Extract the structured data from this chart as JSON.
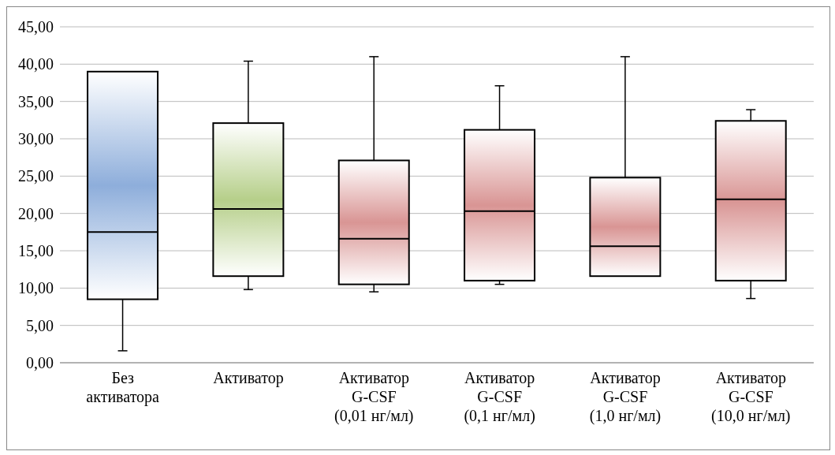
{
  "chart_data": {
    "type": "box",
    "categories": [
      "Без\nактиватора",
      "Активатор",
      "Активатор\nG-CSF\n(0,01 нг/мл)",
      "Активатор\nG-CSF\n(0,1 нг/мл)",
      "Активатор\nG-CSF\n(1,0 нг/мл)",
      "Активатор\nG-CSF\n(10,0 нг/мл)"
    ],
    "boxes": [
      {
        "low": 1.6,
        "q1": 8.5,
        "median": 17.5,
        "q3": 39.0,
        "high": 39.0
      },
      {
        "low": 9.8,
        "q1": 11.6,
        "median": 20.6,
        "q3": 32.1,
        "high": 40.4
      },
      {
        "low": 9.5,
        "q1": 10.5,
        "median": 16.6,
        "q3": 27.1,
        "high": 41.0
      },
      {
        "low": 10.5,
        "q1": 11.0,
        "median": 20.3,
        "q3": 31.2,
        "high": 37.1
      },
      {
        "low": 11.6,
        "q1": 11.6,
        "median": 15.6,
        "q3": 24.8,
        "high": 41.0
      },
      {
        "low": 8.6,
        "q1": 11.0,
        "median": 21.9,
        "q3": 32.4,
        "high": 33.9
      }
    ],
    "colors": [
      "#8eaedb",
      "#b6cf8a",
      "#d99594",
      "#d99594",
      "#d99594",
      "#d99594"
    ],
    "ylim": [
      0,
      45
    ],
    "yticks": [
      {
        "value": 0,
        "label": "0,00"
      },
      {
        "value": 5,
        "label": "5,00"
      },
      {
        "value": 10,
        "label": "10,00"
      },
      {
        "value": 15,
        "label": "15,00"
      },
      {
        "value": 20,
        "label": "20,00"
      },
      {
        "value": 25,
        "label": "25,00"
      },
      {
        "value": 30,
        "label": "30,00"
      },
      {
        "value": 35,
        "label": "35,00"
      },
      {
        "value": 40,
        "label": "40,00"
      },
      {
        "value": 45,
        "label": "45,00"
      }
    ],
    "grid": "y",
    "legend": false
  }
}
